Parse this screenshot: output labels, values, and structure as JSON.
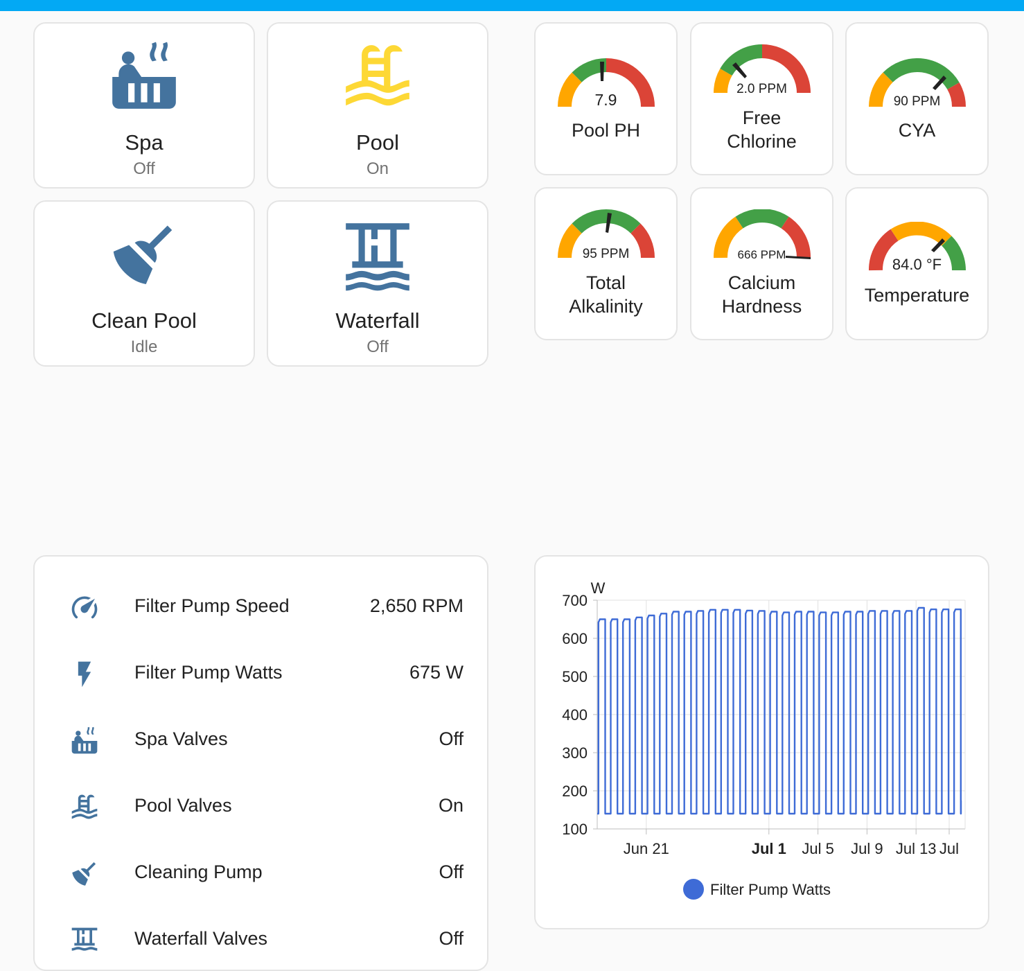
{
  "colors": {
    "accent": "#03a9f4",
    "icon_blue": "#44739e",
    "icon_yellow": "#fdd835",
    "green": "#43a047",
    "orange": "#ffa600",
    "red": "#db4437",
    "line": "#3e6bd6"
  },
  "buttons": [
    {
      "name": "Spa",
      "state": "Off",
      "icon": "hot-tub-icon"
    },
    {
      "name": "Pool",
      "state": "On",
      "icon": "pool-icon"
    },
    {
      "name": "Clean Pool",
      "state": "Idle",
      "icon": "broom-icon"
    },
    {
      "name": "Waterfall",
      "state": "Off",
      "icon": "waterfall-icon"
    }
  ],
  "gauges": [
    {
      "name_lines": [
        "Pool PH"
      ],
      "value_text": "7.9"
    },
    {
      "name_lines": [
        "Free",
        "Chlorine"
      ],
      "value_text": "2.0 PPM"
    },
    {
      "name_lines": [
        "CYA"
      ],
      "value_text": "90 PPM"
    },
    {
      "name_lines": [
        "Total",
        "Alkalinity"
      ],
      "value_text": "95 PPM"
    },
    {
      "name_lines": [
        "Calcium",
        "Hardness"
      ],
      "value_text": "666 PPM"
    },
    {
      "name_lines": [
        "Temperature"
      ],
      "value_text": "84.0 °F"
    }
  ],
  "entities": [
    {
      "label": "Filter Pump Speed",
      "value": "2,650 RPM",
      "icon": "speedometer-icon"
    },
    {
      "label": "Filter Pump Watts",
      "value": "675 W",
      "icon": "flash-icon"
    },
    {
      "label": "Spa Valves",
      "value": "Off",
      "icon": "hot-tub-icon"
    },
    {
      "label": "Pool Valves",
      "value": "On",
      "icon": "pool-icon"
    },
    {
      "label": "Cleaning Pump",
      "value": "Off",
      "icon": "broom-icon"
    },
    {
      "label": "Waterfall Valves",
      "value": "Off",
      "icon": "waterfall-icon"
    }
  ],
  "chart_data": {
    "type": "line",
    "ylabel": "W",
    "ylim": [
      100,
      700
    ],
    "yticks": [
      100,
      200,
      300,
      400,
      500,
      600,
      700
    ],
    "xticks": [
      {
        "label": "Jun 21",
        "bold": false
      },
      {
        "label": "Jul 1",
        "bold": true
      },
      {
        "label": "Jul 5",
        "bold": false
      },
      {
        "label": "Jul 9",
        "bold": false
      },
      {
        "label": "Jul 13",
        "bold": false
      },
      {
        "label": "Jul",
        "bold": false
      }
    ],
    "x_range_days": [
      17,
      47
    ],
    "xtick_days": [
      21,
      31,
      35,
      39,
      43,
      45.7
    ],
    "series": [
      {
        "name": "Filter Pump Watts",
        "low_watts": 140,
        "cycle_days": 1,
        "on_fraction": 0.55,
        "high_watts": [
          650,
          650,
          650,
          655,
          660,
          665,
          670,
          670,
          672,
          675,
          675,
          675,
          673,
          672,
          670,
          668,
          670,
          670,
          668,
          668,
          670,
          670,
          672,
          672,
          672,
          672,
          680,
          676,
          676,
          676,
          676,
          676
        ],
        "end_watts": 175
      }
    ],
    "legend": "bottom"
  }
}
